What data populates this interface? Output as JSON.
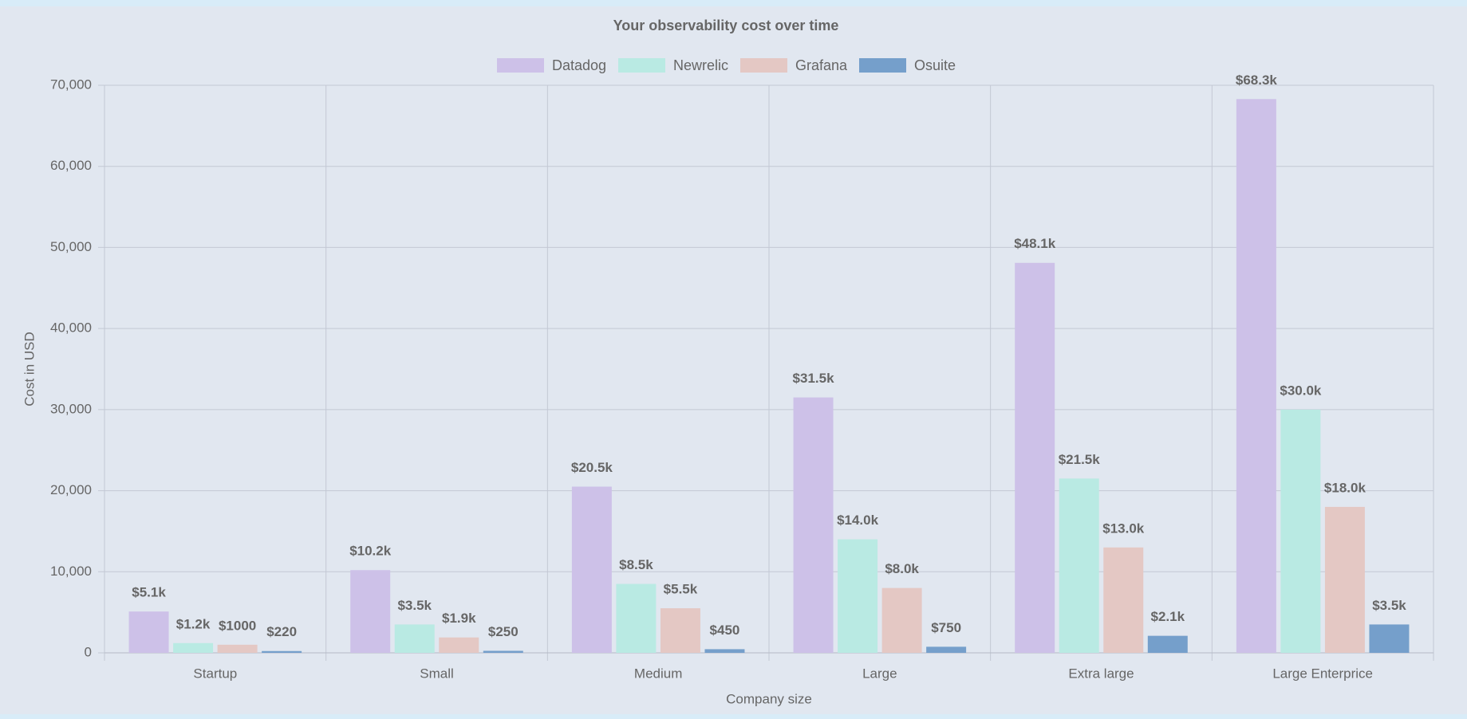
{
  "chart_data": {
    "type": "bar",
    "title": "Your observability cost over time",
    "x_label": "Company size",
    "y_label": "Cost in USD",
    "categories": [
      "Startup",
      "Small",
      "Medium",
      "Large",
      "Extra large",
      "Large Enterprice"
    ],
    "series": [
      {
        "name": "Datadog",
        "color": "#cdc1e8",
        "values": [
          5100,
          10200,
          20500,
          31500,
          48100,
          68300
        ],
        "value_labels": [
          "$5.1k",
          "$10.2k",
          "$20.5k",
          "$31.5k",
          "$48.1k",
          "$68.3k"
        ]
      },
      {
        "name": "Newrelic",
        "color": "#b9eae3",
        "values": [
          1200,
          3500,
          8500,
          14000,
          21500,
          30000
        ],
        "value_labels": [
          "$1.2k",
          "$3.5k",
          "$8.5k",
          "$14.0k",
          "$21.5k",
          "$30.0k"
        ]
      },
      {
        "name": "Grafana",
        "color": "#e4c8c4",
        "values": [
          1000,
          1900,
          5500,
          8000,
          13000,
          18000
        ],
        "value_labels": [
          "$1000",
          "$1.9k",
          "$5.5k",
          "$8.0k",
          "$13.0k",
          "$18.0k"
        ]
      },
      {
        "name": "Osuite",
        "color": "#759fcb",
        "values": [
          220,
          250,
          450,
          750,
          2100,
          3500
        ],
        "value_labels": [
          "$220",
          "$250",
          "$450",
          "$750",
          "$2.1k",
          "$3.5k"
        ]
      }
    ],
    "ylim": [
      0,
      70000
    ],
    "yticks": [
      0,
      {
        "value": 10000,
        "label": "10,000"
      },
      {
        "value": 20000,
        "label": "20,000"
      },
      {
        "value": 30000,
        "label": "30,000"
      },
      {
        "value": 40000,
        "label": "40,000"
      },
      {
        "value": 50000,
        "label": "50,000"
      },
      {
        "value": 60000,
        "label": "60,000"
      },
      {
        "value": 70000,
        "label": "70,000"
      }
    ],
    "grid": true,
    "legend": "top"
  }
}
